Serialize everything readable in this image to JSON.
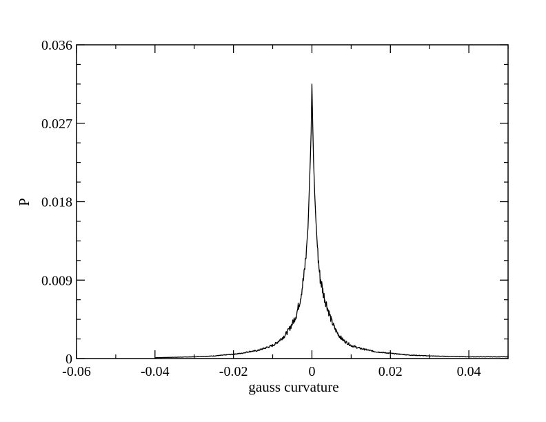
{
  "chart_data": {
    "type": "line",
    "title": "",
    "xlabel": "gauss curvature",
    "ylabel": "P",
    "xlim": [
      -0.06,
      0.05
    ],
    "ylim": [
      0,
      0.036
    ],
    "x_ticks": [
      -0.06,
      -0.04,
      -0.02,
      0,
      0.02,
      0.04
    ],
    "x_tick_labels": [
      "-0.06",
      "-0.04",
      "-0.02",
      "0",
      "0.02",
      "0.04"
    ],
    "y_ticks": [
      0,
      0.009,
      0.018,
      0.027,
      0.036
    ],
    "y_tick_labels": [
      "0",
      "0.009",
      "0.018",
      "0.027",
      "0.036"
    ],
    "grid": false,
    "legend": "none",
    "line_color": "#000000",
    "series": [
      {
        "x": [
          -0.04,
          -0.035,
          -0.03,
          -0.025,
          -0.02,
          -0.018,
          -0.016,
          -0.014,
          -0.012,
          -0.01,
          -0.009,
          -0.008,
          -0.007,
          -0.006,
          -0.005,
          -0.004,
          -0.003,
          -0.002,
          -0.0015,
          -0.001,
          -0.0007,
          -0.0004,
          -0.0002,
          0,
          0.0002,
          0.0004,
          0.0007,
          0.001,
          0.0015,
          0.002,
          0.003,
          0.004,
          0.005,
          0.006,
          0.007,
          0.008,
          0.009,
          0.01,
          0.012,
          0.014,
          0.016,
          0.018,
          0.02,
          0.025,
          0.03,
          0.035,
          0.04,
          0.045,
          0.05
        ],
        "values": [
          0.0001,
          0.00015,
          0.0002,
          0.0003,
          0.0005,
          0.0006,
          0.0008,
          0.0009,
          0.0012,
          0.0015,
          0.0018,
          0.0022,
          0.0026,
          0.0032,
          0.004,
          0.005,
          0.0068,
          0.0095,
          0.012,
          0.015,
          0.019,
          0.023,
          0.026,
          0.0315,
          0.027,
          0.023,
          0.019,
          0.016,
          0.012,
          0.0095,
          0.0073,
          0.0058,
          0.0043,
          0.0033,
          0.0026,
          0.0021,
          0.0018,
          0.0015,
          0.0012,
          0.001,
          0.0008,
          0.0007,
          0.0006,
          0.0004,
          0.0003,
          0.00025,
          0.0002,
          0.0002,
          0.0002
        ]
      }
    ]
  }
}
